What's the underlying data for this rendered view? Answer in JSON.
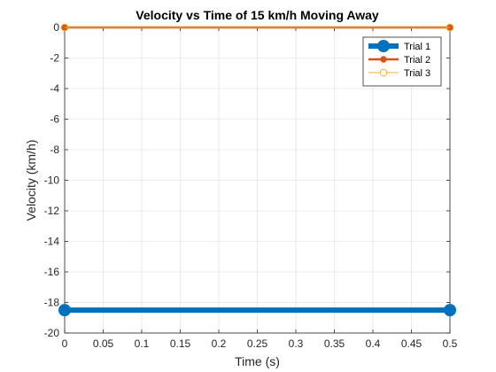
{
  "chart_data": {
    "type": "line",
    "title": "Velocity vs Time of 15 km/h Moving Away",
    "xlabel": "Time (s)",
    "ylabel": "Velocity (km/h)",
    "xlim": [
      0,
      0.5
    ],
    "ylim": [
      -20,
      0
    ],
    "xticks": [
      0,
      0.05,
      0.1,
      0.15,
      0.2,
      0.25,
      0.3,
      0.35,
      0.4,
      0.45,
      0.5
    ],
    "xtick_labels": [
      "0",
      "0.05",
      "0.1",
      "0.15",
      "0.2",
      "0.25",
      "0.3",
      "0.35",
      "0.4",
      "0.45",
      "0.5"
    ],
    "yticks": [
      0,
      -2,
      -4,
      -6,
      -8,
      -10,
      -12,
      -14,
      -16,
      -18,
      -20
    ],
    "ytick_labels": [
      "0",
      "-2",
      "-4",
      "-6",
      "-8",
      "-10",
      "-12",
      "-14",
      "-16",
      "-18",
      "-20"
    ],
    "grid": true,
    "legend_position": "top-right",
    "series": [
      {
        "name": "Trial 1",
        "x": [
          0,
          0.5
        ],
        "y": [
          -18.5,
          -18.5
        ],
        "color": "#0072BD",
        "marker": "filled-circle",
        "weight": "thick"
      },
      {
        "name": "Trial 2",
        "x": [
          0,
          0.5
        ],
        "y": [
          0,
          0
        ],
        "color": "#D95319",
        "marker": "filled-circle",
        "weight": "medium"
      },
      {
        "name": "Trial 3",
        "x": [
          0,
          0.5
        ],
        "y": [
          0,
          0
        ],
        "color": "#EDB120",
        "marker": "open-circle",
        "weight": "thin"
      }
    ]
  }
}
